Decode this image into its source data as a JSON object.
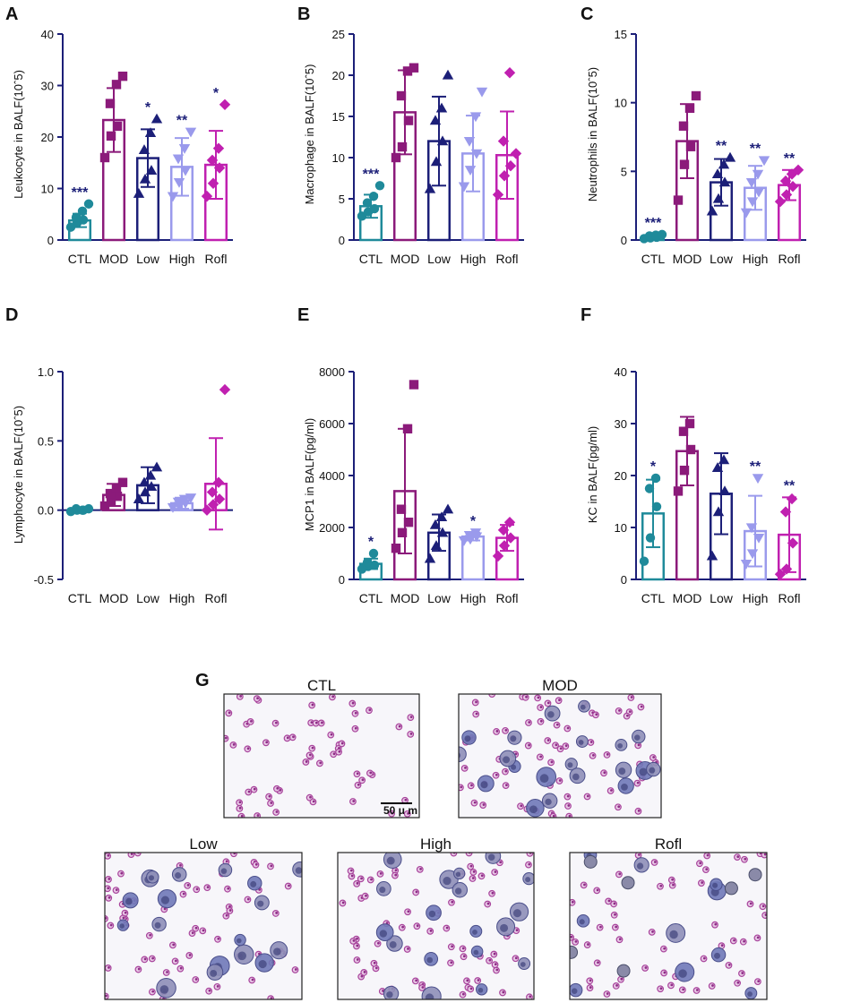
{
  "groups": [
    "CTL",
    "MOD",
    "Low",
    "High",
    "Rofl"
  ],
  "colors": {
    "CTL": "#1f8a9a",
    "MOD": "#8b1a7a",
    "Low": "#1c1f78",
    "High": "#9a9aec",
    "Rofl": "#c020b0",
    "sig": "#1c1f78",
    "axis": "#1c1f78"
  },
  "markers": {
    "CTL": "circle",
    "MOD": "square",
    "Low": "triangle",
    "High": "triangle-down",
    "Rofl": "diamond"
  },
  "chart_data": [
    {
      "panel": "A",
      "type": "bar",
      "ylabel": "Leukocyte in  BALF(10ˆ5)",
      "ylim": [
        0,
        40
      ],
      "yticks": [
        0,
        10,
        20,
        30,
        40
      ],
      "means": [
        3.8,
        23.3,
        15.9,
        14.2,
        14.6
      ],
      "sd": [
        1.3,
        6.2,
        5.6,
        5.6,
        6.6
      ],
      "sig": [
        "***",
        "",
        "*",
        "**",
        "*"
      ],
      "points": [
        [
          2.5,
          3.3,
          3.9,
          4.4,
          5.6,
          7.0
        ],
        [
          16.0,
          20.2,
          22.1,
          26.5,
          30.2,
          31.8
        ],
        [
          9.0,
          11.8,
          13.5,
          17.5,
          20.8,
          23.5
        ],
        [
          8.5,
          11.2,
          13.5,
          15.8,
          17.8,
          21.0
        ],
        [
          8.5,
          11.0,
          14.0,
          15.5,
          17.8,
          26.3
        ]
      ]
    },
    {
      "panel": "B",
      "type": "bar",
      "ylabel": "Macrophage in BALF(10ˆ5)",
      "ylim": [
        0,
        25
      ],
      "yticks": [
        0,
        5,
        10,
        15,
        20,
        25
      ],
      "means": [
        4.1,
        15.5,
        12.0,
        10.5,
        10.3
      ],
      "sd": [
        1.4,
        5.1,
        5.4,
        4.6,
        5.3
      ],
      "sig": [
        "***",
        "",
        "",
        "",
        ""
      ],
      "points": [
        [
          2.9,
          3.4,
          3.8,
          4.5,
          5.3,
          6.6
        ],
        [
          10.0,
          11.3,
          14.5,
          17.5,
          20.5,
          20.9
        ],
        [
          6.2,
          9.5,
          12.0,
          14.5,
          16.0,
          20.0
        ],
        [
          6.5,
          8.5,
          10.5,
          12.0,
          15.0,
          18.0
        ],
        [
          5.5,
          7.8,
          9.0,
          12.0,
          20.3,
          10.5
        ]
      ]
    },
    {
      "panel": "C",
      "type": "bar",
      "ylabel": "Neutrophils in BALF(10ˆ5)",
      "ylim": [
        0,
        15
      ],
      "yticks": [
        0,
        5,
        10,
        15
      ],
      "means": [
        0.25,
        7.2,
        4.2,
        3.8,
        4.0
      ],
      "sd": [
        0.12,
        2.7,
        1.7,
        1.6,
        1.1
      ],
      "sig": [
        "***",
        "",
        "**",
        "**",
        "**"
      ],
      "points": [
        [
          0.1,
          0.15,
          0.2,
          0.3,
          0.35,
          0.4
        ],
        [
          2.9,
          5.5,
          6.8,
          8.3,
          9.6,
          10.5
        ],
        [
          2.1,
          3.0,
          4.2,
          4.8,
          5.5,
          6.0
        ],
        [
          2.0,
          2.8,
          3.5,
          4.2,
          4.8,
          5.8
        ],
        [
          2.8,
          3.3,
          3.9,
          4.3,
          4.8,
          5.1
        ]
      ]
    },
    {
      "panel": "D",
      "type": "bar",
      "ylabel": "Lymphocyte in BALF(10ˆ5)",
      "ylim": [
        -0.5,
        1.0
      ],
      "yticks": [
        -0.5,
        0.0,
        0.5,
        1.0
      ],
      "tickLabels": [
        "-0.5",
        "0.0",
        "0.5",
        "1.0"
      ],
      "means": [
        0.0,
        0.11,
        0.18,
        0.05,
        0.19
      ],
      "sd": [
        0.01,
        0.08,
        0.13,
        0.04,
        0.33
      ],
      "sig": [
        "",
        "",
        "",
        "",
        ""
      ],
      "points": [
        [
          -0.01,
          0.0,
          0.0,
          0.01,
          0.0,
          0.01
        ],
        [
          0.03,
          0.06,
          0.1,
          0.12,
          0.16,
          0.2
        ],
        [
          0.08,
          0.13,
          0.17,
          0.2,
          0.25,
          0.31
        ],
        [
          0.02,
          0.03,
          0.05,
          0.06,
          0.08,
          0.09
        ],
        [
          0.0,
          0.04,
          0.08,
          0.13,
          0.2,
          0.87
        ]
      ]
    },
    {
      "panel": "E",
      "type": "bar",
      "ylabel": "MCP1 in BALF(pg/ml)",
      "ylim": [
        0,
        8000
      ],
      "yticks": [
        0,
        2000,
        4000,
        6000,
        8000
      ],
      "means": [
        600,
        3400,
        1800,
        1650,
        1600
      ],
      "sd": [
        200,
        2400,
        700,
        150,
        500
      ],
      "sig": [
        "*",
        "",
        "",
        "*",
        ""
      ],
      "points": [
        [
          400,
          500,
          550,
          650,
          1000
        ],
        [
          1200,
          1800,
          2200,
          2700,
          5800,
          7500
        ],
        [
          800,
          1300,
          1800,
          2100,
          2400,
          2700
        ],
        [
          1500,
          1550,
          1650,
          1700,
          1800
        ],
        [
          900,
          1300,
          1600,
          1900,
          2200
        ]
      ]
    },
    {
      "panel": "F",
      "type": "bar",
      "ylabel": "KC  in BALF(pg/ml)",
      "ylim": [
        0,
        40
      ],
      "yticks": [
        0,
        10,
        20,
        30,
        40
      ],
      "means": [
        12.7,
        24.7,
        16.5,
        9.3,
        8.6
      ],
      "sd": [
        6.5,
        6.6,
        7.8,
        6.8,
        7.2
      ],
      "sig": [
        "*",
        "",
        "",
        "**",
        "**"
      ],
      "points": [
        [
          3.5,
          8.0,
          14.0,
          17.5,
          19.5
        ],
        [
          17.0,
          21.0,
          25.0,
          28.5,
          30.0
        ],
        [
          4.5,
          13.0,
          17.0,
          21.5,
          23.0
        ],
        [
          3.0,
          5.0,
          8.0,
          10.0,
          19.5
        ],
        [
          1.0,
          2.0,
          7.0,
          13.0,
          15.5
        ]
      ]
    }
  ],
  "micrographs": {
    "label": "G",
    "titles": [
      "CTL",
      "MOD",
      "Low",
      "High",
      "Rofl"
    ],
    "scale_bar": "50 μ m"
  }
}
